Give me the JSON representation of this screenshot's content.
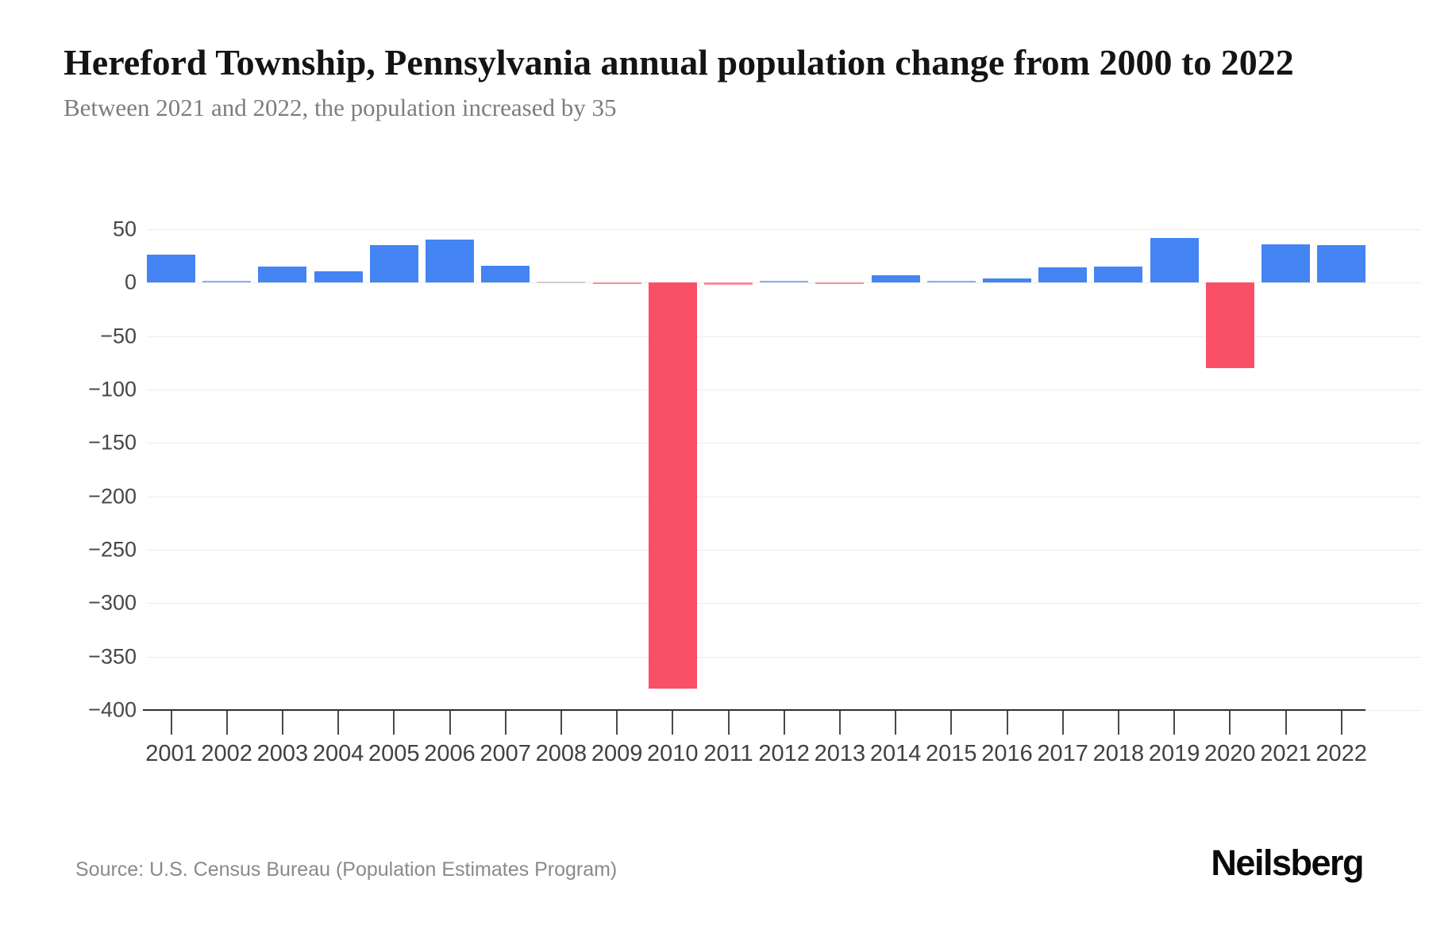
{
  "header": {},
  "chart_data": {
    "type": "bar",
    "title": "Hereford Township, Pennsylvania annual population change from 2000 to 2022",
    "subtitle": "Between 2021 and 2022, the population increased by 35",
    "categories": [
      "2001",
      "2002",
      "2003",
      "2004",
      "2005",
      "2006",
      "2007",
      "2008",
      "2009",
      "2010",
      "2011",
      "2012",
      "2013",
      "2014",
      "2015",
      "2016",
      "2017",
      "2018",
      "2019",
      "2020",
      "2021",
      "2022"
    ],
    "values": [
      26,
      1,
      15,
      11,
      35,
      40,
      16,
      0,
      -1,
      -380,
      -2,
      1,
      -1,
      7,
      1,
      4,
      14,
      15,
      42,
      -80,
      36,
      35
    ],
    "xlabel": "",
    "ylabel": "",
    "ylim": [
      -400,
      50
    ],
    "y_ticks": [
      {
        "value": 50,
        "label": "50"
      },
      {
        "value": 0,
        "label": "0"
      },
      {
        "value": -50,
        "label": "−50"
      },
      {
        "value": -100,
        "label": "−100"
      },
      {
        "value": -150,
        "label": "−150"
      },
      {
        "value": -200,
        "label": "−200"
      },
      {
        "value": -250,
        "label": "−250"
      },
      {
        "value": -300,
        "label": "−300"
      },
      {
        "value": -350,
        "label": "−350"
      },
      {
        "value": -400,
        "label": "−400"
      }
    ],
    "grid": "horizontal",
    "legend": "none",
    "colors": {
      "positive": "#4484f3",
      "negative": "#fa5066",
      "zero": "#c9cfd6"
    }
  },
  "footer": {
    "source": "Source: U.S. Census Bureau (Population Estimates Program)",
    "brand": "Neilsberg"
  }
}
